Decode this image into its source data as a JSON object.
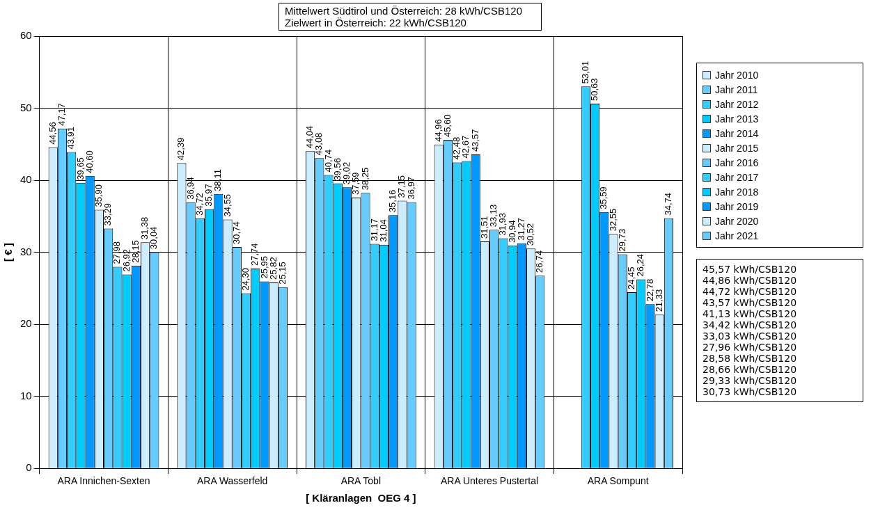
{
  "chart_data": {
    "type": "bar",
    "title": "Mittelwert  Südtirol und Österreich: 28 kWh/CSB120",
    "subtitle": "Zielwert  in Österreich: 22 kWh/CSB120",
    "xlabel": "[ Kläranlagen  OEG 4 ]",
    "ylabel": "[ € ]",
    "categories": [
      "ARA Innichen-Sexten",
      "ARA Wasserfeld",
      "ARA Tobl",
      "ARA Unteres Pustertal",
      "ARA Sompunt"
    ],
    "series": [
      {
        "name": "Jahr 2010",
        "color": "#ccecff",
        "values": [
          44.56,
          42.39,
          44.04,
          44.96,
          null
        ],
        "value_labels": [
          "44,56",
          "42,39",
          "44,04",
          "44,96",
          null
        ]
      },
      {
        "name": "Jahr 2011",
        "color": "#66ccff",
        "values": [
          47.17,
          36.94,
          43.08,
          45.6,
          null
        ],
        "value_labels": [
          "47,17",
          "36,94",
          "43,08",
          "45,60",
          null
        ]
      },
      {
        "name": "Jahr 2012",
        "color": "#33ccff",
        "values": [
          43.91,
          34.72,
          40.74,
          42.48,
          53.01
        ],
        "value_labels": [
          "43,91",
          "34,72",
          "40,74",
          "42,48",
          "53,01"
        ]
      },
      {
        "name": "Jahr 2013",
        "color": "#00ccff",
        "values": [
          39.65,
          35.97,
          39.56,
          42.67,
          50.63
        ],
        "value_labels": [
          "39,65",
          "35,97",
          "39,56",
          "42,67",
          "50,63"
        ]
      },
      {
        "name": "Jahr 2014",
        "color": "#0099ff",
        "values": [
          40.6,
          38.11,
          39.02,
          43.57,
          35.59
        ],
        "value_labels": [
          "40,60",
          "38,11",
          "39,02",
          "43,57",
          "35,59"
        ]
      },
      {
        "name": "Jahr 2015",
        "color": "#ccecff",
        "values": [
          35.9,
          34.55,
          37.59,
          31.51,
          32.55
        ],
        "value_labels": [
          "35,90",
          "34,55",
          "37,59",
          "31,51",
          "32,55"
        ]
      },
      {
        "name": "Jahr 2016",
        "color": "#66ccff",
        "values": [
          33.29,
          30.74,
          38.25,
          33.13,
          29.73
        ],
        "value_labels": [
          "33,29",
          "30,74",
          "38,25",
          "33,13",
          "29,73"
        ]
      },
      {
        "name": "Jahr 2017",
        "color": "#33ccff",
        "values": [
          27.98,
          24.3,
          31.17,
          31.93,
          24.45
        ],
        "value_labels": [
          "27,98",
          "24,30",
          "31,17",
          "31,93",
          "24,45"
        ]
      },
      {
        "name": "Jahr 2018",
        "color": "#00ccff",
        "values": [
          26.92,
          27.74,
          31.04,
          30.94,
          26.24
        ],
        "value_labels": [
          "26,92",
          "27,74",
          "31,04",
          "30,94",
          "26,24"
        ]
      },
      {
        "name": "Jahr 2019",
        "color": "#0099ff",
        "values": [
          28.15,
          25.95,
          35.16,
          31.27,
          22.78
        ],
        "value_labels": [
          "28,15",
          "25,95",
          "35,16",
          "31,27",
          "22,78"
        ]
      },
      {
        "name": "Jahr 2020",
        "color": "#ccecff",
        "values": [
          31.38,
          25.82,
          37.15,
          30.52,
          21.33
        ],
        "value_labels": [
          "31,38",
          "25,82",
          "37,15",
          "30,52",
          "21,33"
        ]
      },
      {
        "name": "Jahr 2021",
        "color": "#66ccff",
        "values": [
          30.04,
          25.15,
          36.97,
          26.74,
          34.74
        ],
        "value_labels": [
          "30,04",
          "25,15",
          "36,97",
          "26,74",
          "34,74"
        ]
      }
    ],
    "ylim": [
      0,
      60
    ],
    "yticks": [
      0,
      10,
      20,
      30,
      40,
      50,
      60
    ],
    "grid": true,
    "legend": "right",
    "annotations": [
      "45,57 kWh/CSB120",
      "44,86 kWh/CSB120",
      "44,72 kWh/CSB120",
      "43,57 kWh/CSB120",
      "41,13 kWh/CSB120",
      "34,42 kWh/CSB120",
      "33,03 kWh/CSB120",
      "27,96 kWh/CSB120",
      "28,58 kWh/CSB120",
      "28,66 kWh/CSB120",
      "29,33 kWh/CSB120",
      "30,73 kWh/CSB120"
    ]
  }
}
